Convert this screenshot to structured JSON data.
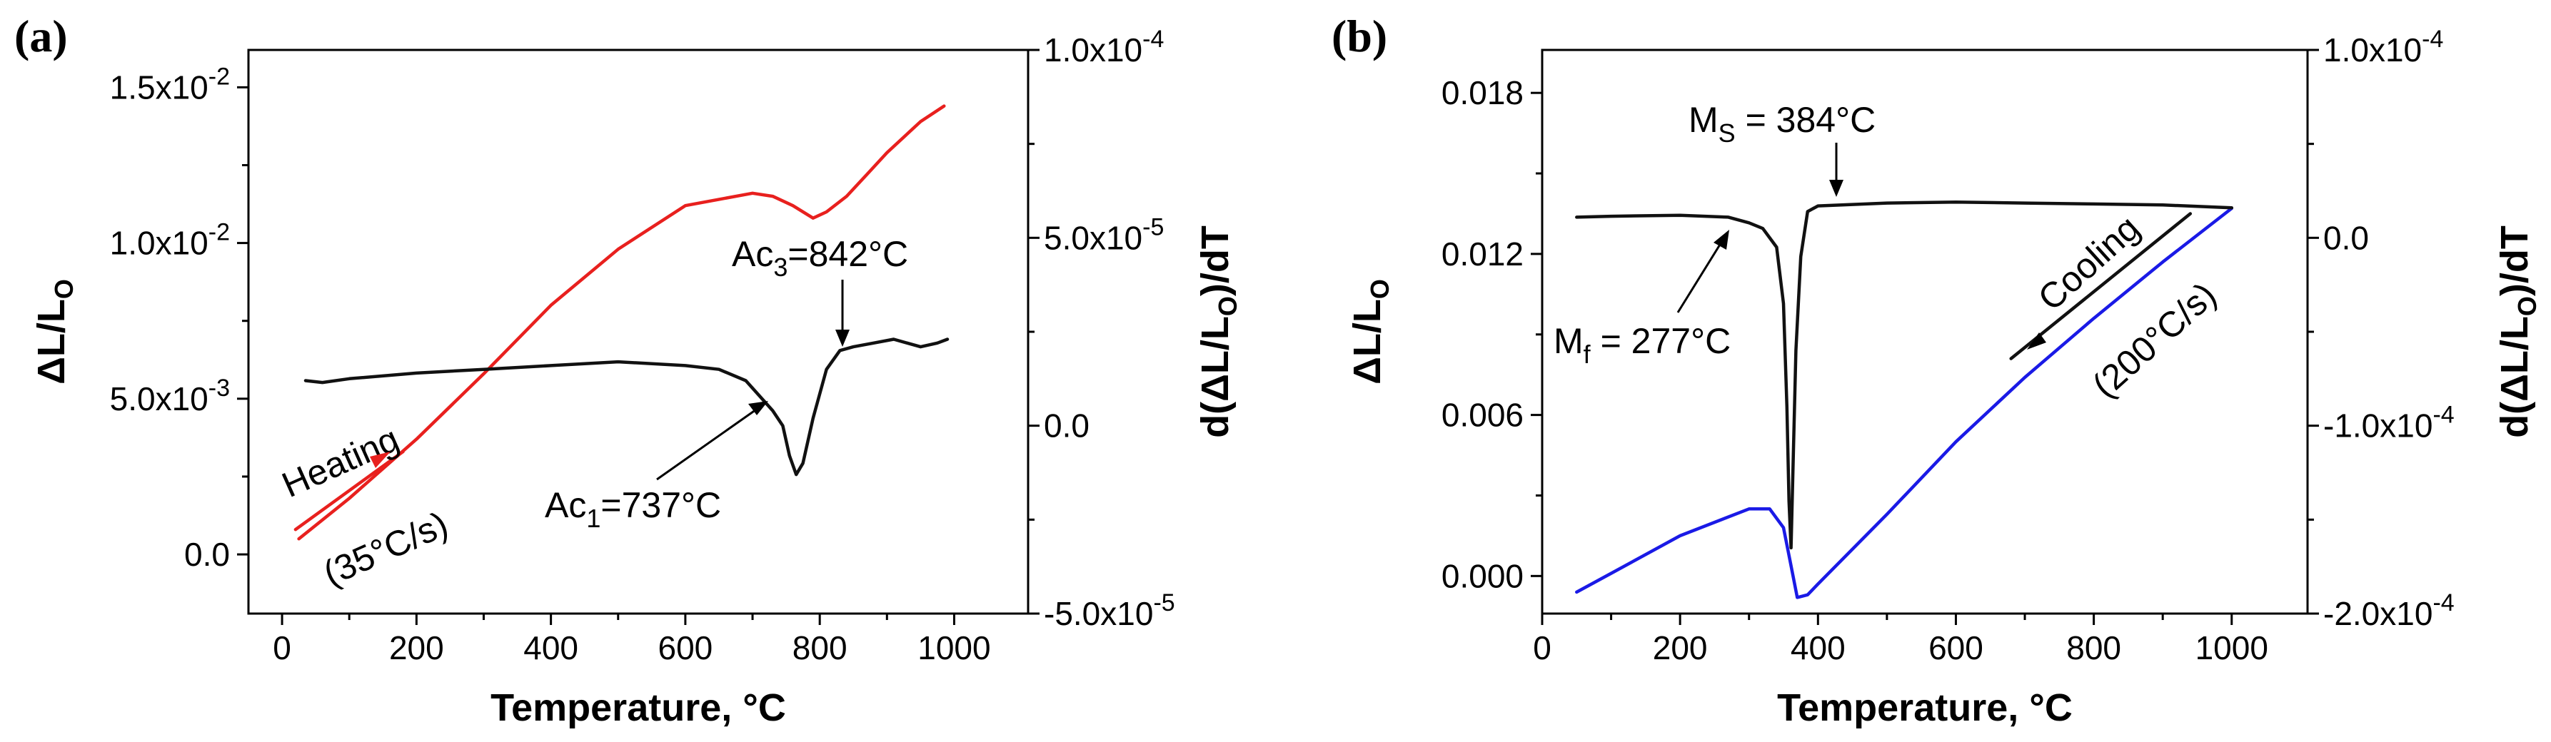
{
  "chart_data": [
    {
      "panel": "(a)",
      "type": "line",
      "xlabel": "Temperature, °C",
      "ylabel": {
        "base": "ΔL/L",
        "sub": "O"
      },
      "y2label": {
        "pre": "d(ΔL/L",
        "sub": "O",
        "post": ")/dT"
      },
      "xlim": [
        -50,
        1110
      ],
      "ylim": [
        -0.0019,
        0.0162
      ],
      "y2lim": [
        -5e-05,
        0.0001
      ],
      "x_ticks": [
        0,
        200,
        400,
        600,
        800,
        1000
      ],
      "x_tick_labels": [
        "0",
        "200",
        "400",
        "600",
        "800",
        "1000"
      ],
      "y_ticks": [
        0,
        0.005,
        0.01,
        0.015
      ],
      "y_tick_labels": [
        "0.0",
        "5.0x10-3",
        "1.0x10-2",
        "1.5x10-2"
      ],
      "y2_ticks": [
        -5e-05,
        0,
        5e-05,
        0.0001
      ],
      "y2_tick_labels": [
        "-5.0x10-5",
        "0.0",
        "5.0x10-5",
        "1.0x10-4"
      ],
      "series": [
        {
          "name": "ΔL/Lo (heating)",
          "axis": "left",
          "color": "#e8201e",
          "points": [
            [
              25,
              0.0005
            ],
            [
              100,
              0.0018
            ],
            [
              200,
              0.0037
            ],
            [
              300,
              0.0058
            ],
            [
              400,
              0.008
            ],
            [
              500,
              0.0098
            ],
            [
              600,
              0.0112
            ],
            [
              700,
              0.0116
            ],
            [
              730,
              0.0115
            ],
            [
              760,
              0.0112
            ],
            [
              790,
              0.0108
            ],
            [
              810,
              0.011
            ],
            [
              840,
              0.0115
            ],
            [
              870,
              0.0122
            ],
            [
              900,
              0.0129
            ],
            [
              950,
              0.0139
            ],
            [
              985,
              0.0144
            ]
          ]
        },
        {
          "name": "d(ΔL/Lo)/dT",
          "axis": "right",
          "color": "#111111",
          "points": [
            [
              35,
              1.2e-05
            ],
            [
              60,
              1.15e-05
            ],
            [
              100,
              1.25e-05
            ],
            [
              200,
              1.4e-05
            ],
            [
              300,
              1.5e-05
            ],
            [
              400,
              1.6e-05
            ],
            [
              500,
              1.7e-05
            ],
            [
              600,
              1.6e-05
            ],
            [
              650,
              1.5e-05
            ],
            [
              690,
              1.2e-05
            ],
            [
              710,
              8e-06
            ],
            [
              730,
              4e-06
            ],
            [
              745,
              0.0
            ],
            [
              755,
              -8e-06
            ],
            [
              765,
              -1.3e-05
            ],
            [
              775,
              -1e-05
            ],
            [
              790,
              2e-06
            ],
            [
              810,
              1.5e-05
            ],
            [
              830,
              2e-05
            ],
            [
              850,
              2.1e-05
            ],
            [
              880,
              2.2e-05
            ],
            [
              910,
              2.3e-05
            ],
            [
              930,
              2.2e-05
            ],
            [
              950,
              2.1e-05
            ],
            [
              975,
              2.2e-05
            ],
            [
              990,
              2.3e-05
            ]
          ]
        },
        {
          "name": "Heating rate indicator",
          "axis": "left",
          "color": "#e8201e",
          "points": [
            [
              20,
              0.0008
            ],
            [
              180,
              0.0033
            ]
          ]
        }
      ],
      "annotations": {
        "heating": "Heating",
        "heating_rate": "(35°C/s)",
        "ac3_pre": "Ac",
        "ac3_sub": "3",
        "ac3_post": "=842°C",
        "ac1_pre": "Ac",
        "ac1_sub": "1",
        "ac1_post": "=737°C"
      }
    },
    {
      "panel": "(b)",
      "type": "line",
      "xlabel": "Temperature, °C",
      "ylabel": {
        "base": "ΔL/L",
        "sub": "O"
      },
      "y2label": {
        "pre": "d(ΔL/L",
        "sub": "O",
        "post": ")/dT"
      },
      "xlim": [
        0,
        1110
      ],
      "ylim": [
        -0.0014,
        0.0196
      ],
      "y2lim": [
        -0.0002,
        0.0001
      ],
      "x_ticks": [
        0,
        200,
        400,
        600,
        800,
        1000
      ],
      "x_tick_labels": [
        "0",
        "200",
        "400",
        "600",
        "800",
        "1000"
      ],
      "y_ticks": [
        0,
        0.006,
        0.012,
        0.018
      ],
      "y_tick_labels": [
        "0.000",
        "0.006",
        "0.012",
        "0.018"
      ],
      "y2_ticks": [
        -0.0002,
        -0.0001,
        0,
        0.0001
      ],
      "y2_tick_labels": [
        "-2.0x10-4",
        "-1.0x10-4",
        "0.0",
        "1.0x10-4"
      ],
      "series": [
        {
          "name": "ΔL/Lo (cooling)",
          "axis": "left",
          "color": "#1a1ae6",
          "points": [
            [
              50,
              -0.0006
            ],
            [
              100,
              0.0001
            ],
            [
              200,
              0.0015
            ],
            [
              300,
              0.0025
            ],
            [
              330,
              0.0025
            ],
            [
              350,
              0.0018
            ],
            [
              360,
              0.0005
            ],
            [
              370,
              -0.0008
            ],
            [
              385,
              -0.0007
            ],
            [
              400,
              -0.0003
            ],
            [
              500,
              0.0023
            ],
            [
              600,
              0.005
            ],
            [
              700,
              0.0074
            ],
            [
              800,
              0.0096
            ],
            [
              900,
              0.0117
            ],
            [
              1000,
              0.0137
            ]
          ]
        },
        {
          "name": "d(ΔL/Lo)/dT",
          "axis": "right",
          "color": "#111111",
          "points": [
            [
              50,
              1.1e-05
            ],
            [
              100,
              1.15e-05
            ],
            [
              200,
              1.2e-05
            ],
            [
              270,
              1.1e-05
            ],
            [
              300,
              8e-06
            ],
            [
              320,
              5e-06
            ],
            [
              340,
              -5e-06
            ],
            [
              350,
              -3.5e-05
            ],
            [
              355,
              -9e-05
            ],
            [
              358,
              -0.00014
            ],
            [
              361,
              -0.000165
            ],
            [
              364,
              -0.00012
            ],
            [
              368,
              -6e-05
            ],
            [
              375,
              -1e-05
            ],
            [
              385,
              1.4e-05
            ],
            [
              400,
              1.7e-05
            ],
            [
              500,
              1.85e-05
            ],
            [
              600,
              1.9e-05
            ],
            [
              700,
              1.85e-05
            ],
            [
              800,
              1.8e-05
            ],
            [
              900,
              1.75e-05
            ],
            [
              1000,
              1.6e-05
            ]
          ]
        },
        {
          "name": "Cooling rate indicator",
          "axis": "left",
          "color": "#111111",
          "points": [
            [
              940,
              0.0135
            ],
            [
              680,
              0.0081
            ]
          ]
        }
      ],
      "annotations": {
        "ms_pre": "M",
        "ms_sub": "S",
        "ms_post": " = 384°C",
        "mf_pre": "M",
        "mf_sub": "f",
        "mf_post": " = 277°C",
        "cooling": "Cooling",
        "cooling_rate": "(200°C/s)"
      }
    }
  ]
}
